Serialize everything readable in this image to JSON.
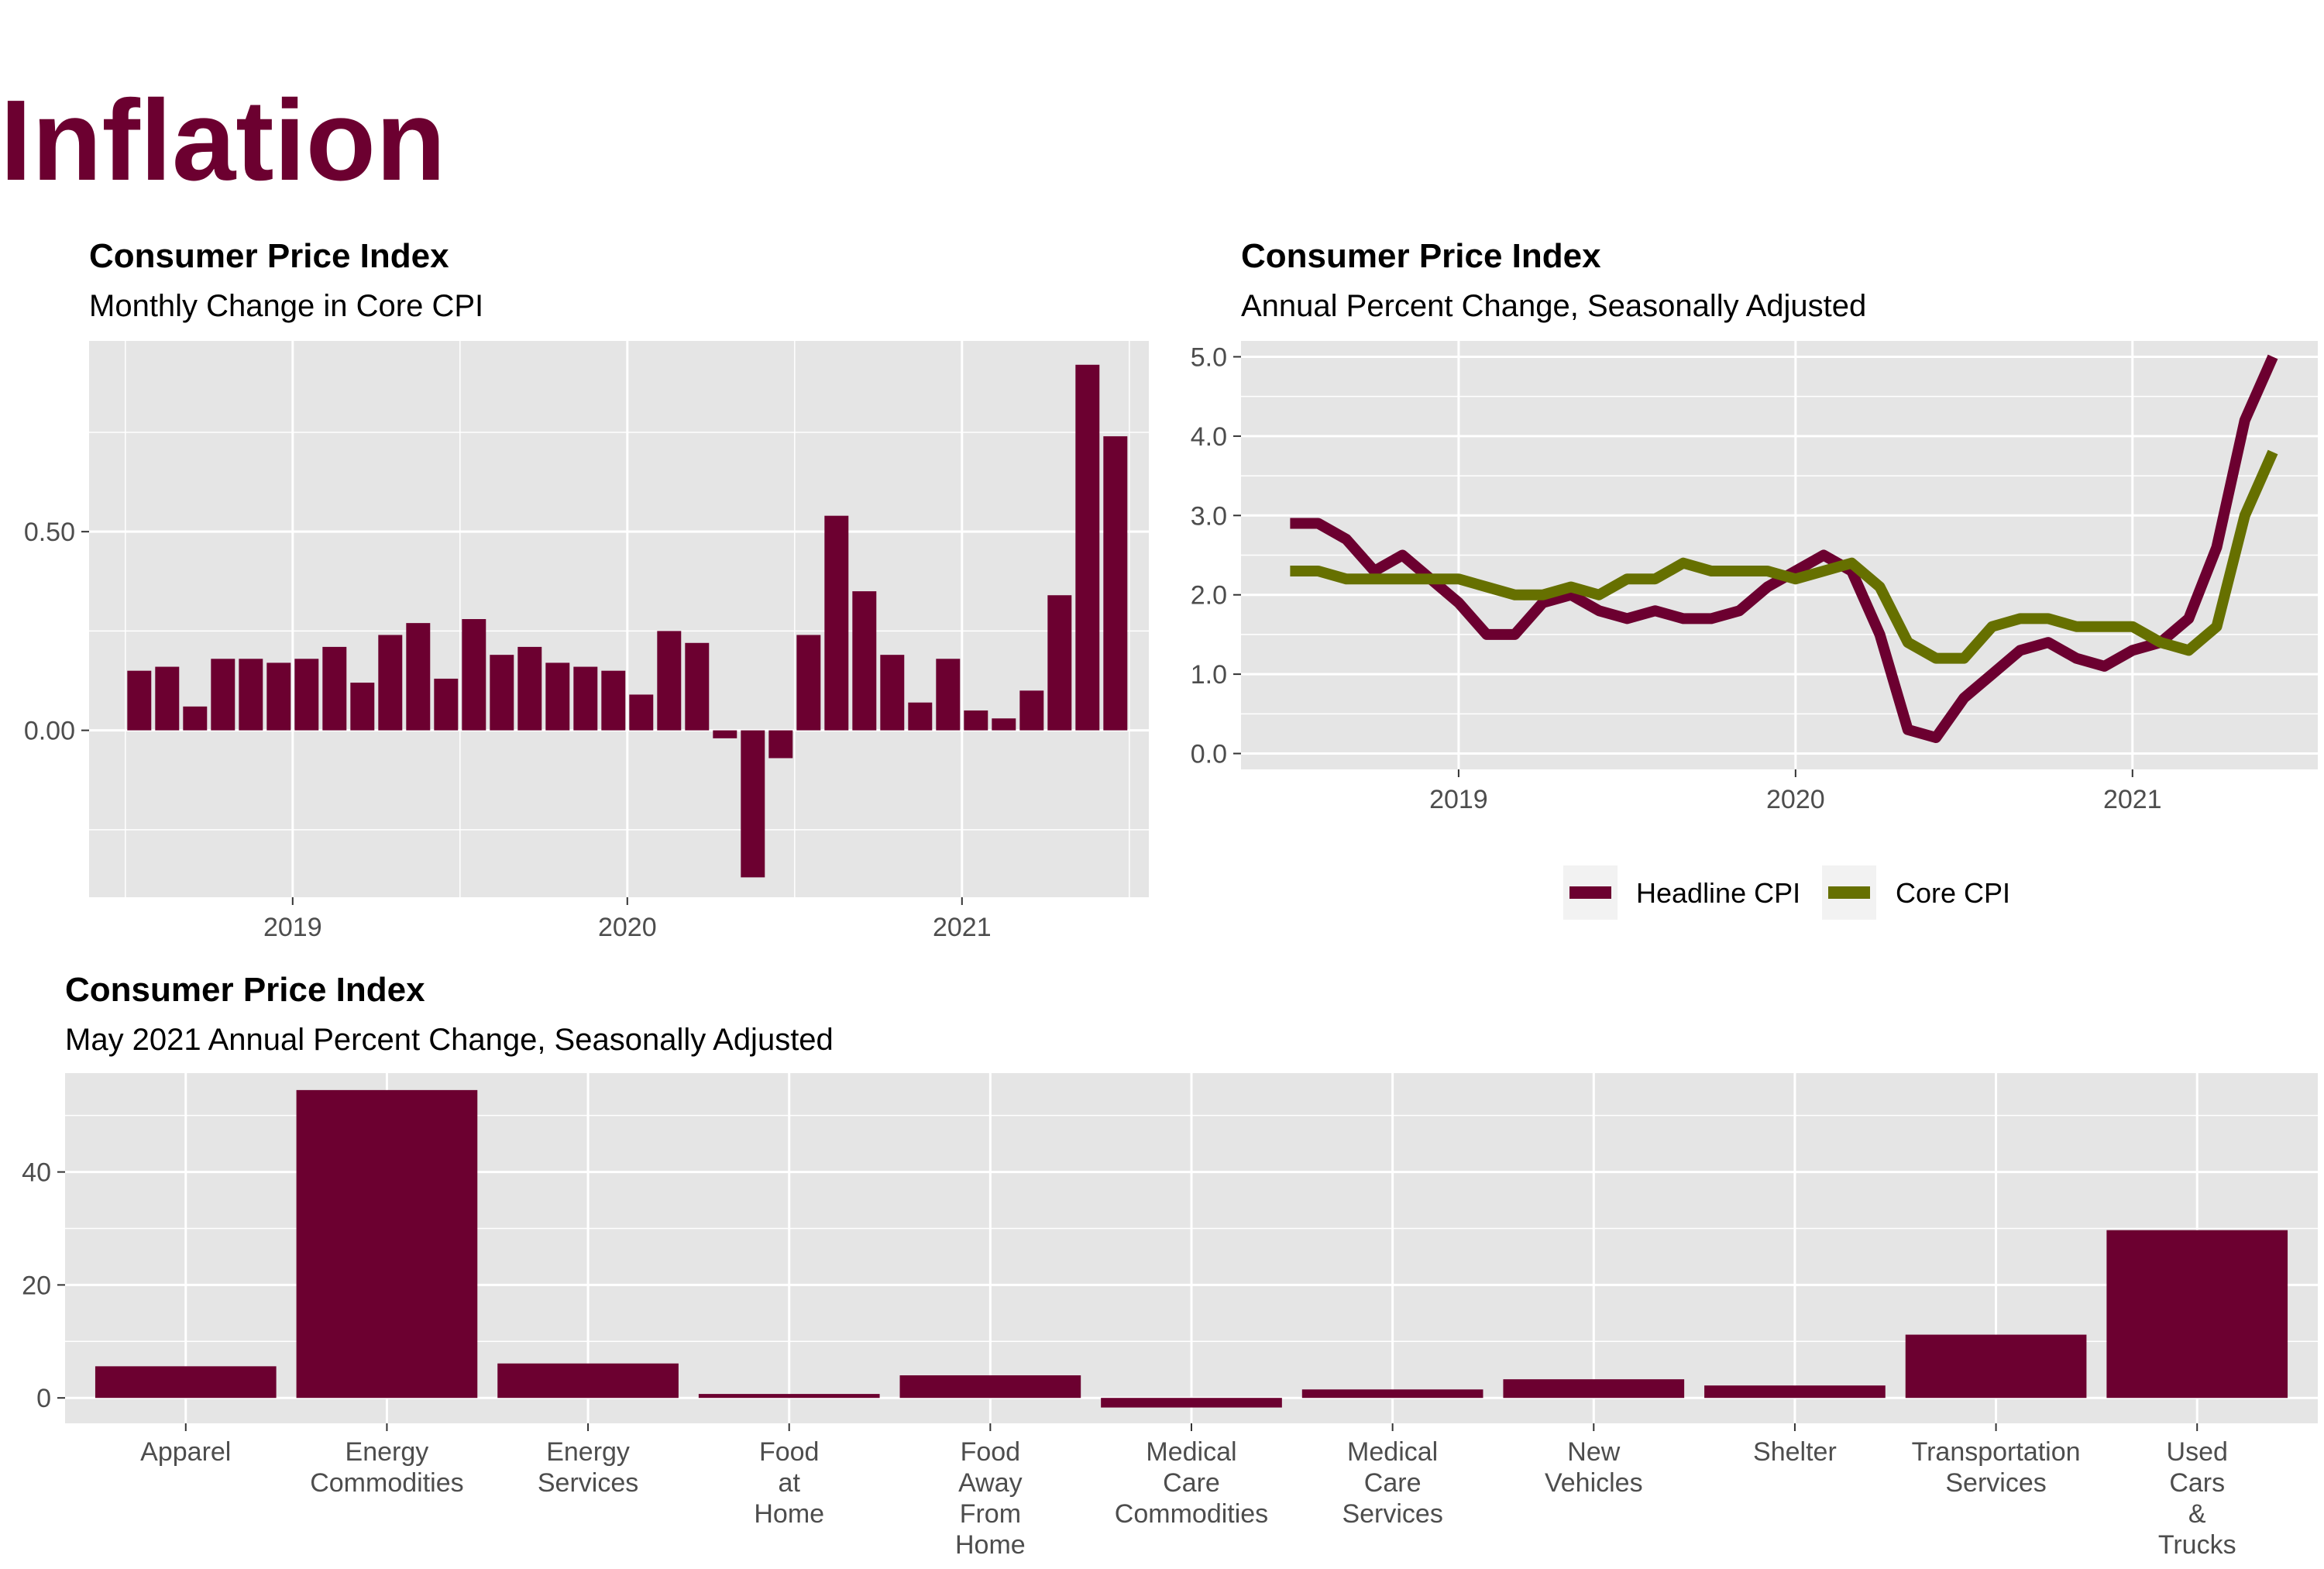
{
  "page": {
    "title": "Inflation"
  },
  "colors": {
    "headline": "#6c0030",
    "core": "#667000",
    "panel_bg": "#e5e5e5",
    "grid": "#ffffff",
    "title": "#6c0030"
  },
  "chart_data": [
    {
      "id": "monthly",
      "type": "bar",
      "title": "Consumer Price Index",
      "subtitle": "Monthly Change in Core CPI",
      "xlabel": "",
      "ylabel": "",
      "x_start": "2018-07",
      "values": [
        0.15,
        0.16,
        0.06,
        0.18,
        0.18,
        0.17,
        0.18,
        0.21,
        0.12,
        0.24,
        0.27,
        0.13,
        0.28,
        0.19,
        0.21,
        0.17,
        0.16,
        0.15,
        0.09,
        0.25,
        0.22,
        -0.02,
        -0.37,
        -0.07,
        0.24,
        0.54,
        0.35,
        0.19,
        0.07,
        0.18,
        0.05,
        0.03,
        0.1,
        0.34,
        0.92,
        0.74
      ],
      "ylim": [
        -0.42,
        0.98
      ],
      "yticks": [
        0.0,
        0.5
      ],
      "ytick_labels": [
        "0.00",
        "0.50"
      ],
      "xticks": [
        "2019",
        "2020",
        "2021"
      ],
      "grid": true
    },
    {
      "id": "annual",
      "type": "line",
      "title": "Consumer Price Index",
      "subtitle": "Annual Percent Change, Seasonally Adjusted",
      "xlabel": "",
      "ylabel": "",
      "x_start": "2018-07",
      "series": [
        {
          "name": "Headline CPI",
          "color": "#6c0030",
          "values": [
            2.9,
            2.9,
            2.7,
            2.3,
            2.5,
            2.2,
            1.9,
            1.5,
            1.5,
            1.9,
            2.0,
            1.8,
            1.7,
            1.8,
            1.7,
            1.7,
            1.8,
            2.1,
            2.3,
            2.5,
            2.3,
            1.5,
            0.3,
            0.2,
            0.7,
            1.0,
            1.3,
            1.4,
            1.2,
            1.1,
            1.3,
            1.4,
            1.7,
            2.6,
            4.2,
            5.0
          ]
        },
        {
          "name": "Core CPI",
          "color": "#667000",
          "values": [
            2.3,
            2.3,
            2.2,
            2.2,
            2.2,
            2.2,
            2.2,
            2.1,
            2.0,
            2.0,
            2.1,
            2.0,
            2.2,
            2.2,
            2.4,
            2.3,
            2.3,
            2.3,
            2.2,
            2.3,
            2.4,
            2.1,
            1.4,
            1.2,
            1.2,
            1.6,
            1.7,
            1.7,
            1.6,
            1.6,
            1.6,
            1.4,
            1.3,
            1.6,
            3.0,
            3.8
          ]
        }
      ],
      "ylim": [
        -0.2,
        5.2
      ],
      "yticks": [
        0,
        1,
        2,
        3,
        4,
        5
      ],
      "ytick_labels": [
        "0.0",
        "1.0",
        "2.0",
        "3.0",
        "4.0",
        "5.0"
      ],
      "xticks": [
        "2019",
        "2020",
        "2021"
      ],
      "grid": true,
      "legend_position": "bottom"
    },
    {
      "id": "components",
      "type": "bar",
      "title": "Consumer Price Index",
      "subtitle": "May 2021 Annual Percent Change, Seasonally Adjusted",
      "xlabel": "",
      "ylabel": "",
      "categories": [
        [
          "Apparel"
        ],
        [
          "Energy",
          "Commodities"
        ],
        [
          "Energy",
          "Services"
        ],
        [
          "Food",
          "at",
          "Home"
        ],
        [
          "Food",
          "Away",
          "From",
          "Home"
        ],
        [
          "Medical",
          "Care",
          "Commodities"
        ],
        [
          "Medical",
          "Care",
          "Services"
        ],
        [
          "New",
          "Vehicles"
        ],
        [
          "Shelter"
        ],
        [
          "Transportation",
          "Services"
        ],
        [
          "Used",
          "Cars",
          "&",
          "Trucks"
        ]
      ],
      "values": [
        5.6,
        54.5,
        6.1,
        0.7,
        4.0,
        -1.7,
        1.5,
        3.3,
        2.2,
        11.2,
        29.7
      ],
      "ylim": [
        -4.5,
        57.5
      ],
      "yticks": [
        0,
        20,
        40
      ],
      "ytick_labels": [
        "0",
        "20",
        "40"
      ],
      "grid": true
    }
  ]
}
